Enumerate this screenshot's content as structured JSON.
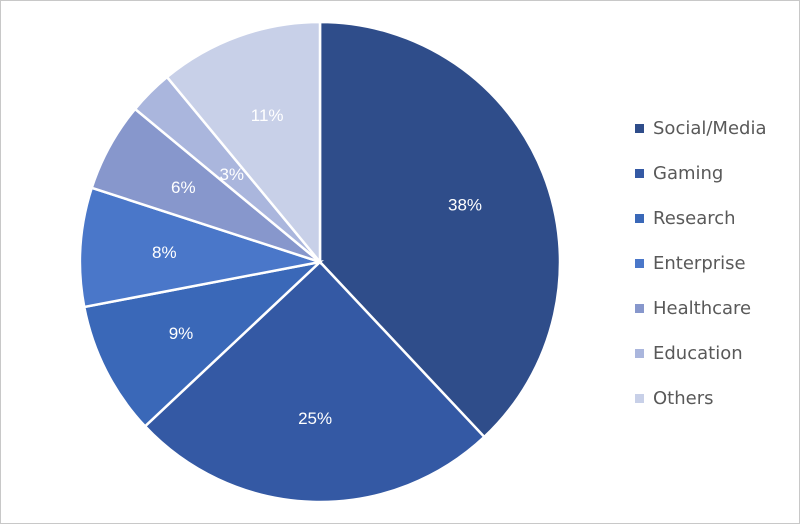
{
  "chart_data": {
    "type": "pie",
    "categories": [
      "Social/Media",
      "Gaming",
      "Research",
      "Enterprise",
      "Healthcare",
      "Education",
      "Others"
    ],
    "values": [
      38,
      25,
      9,
      8,
      6,
      3,
      11
    ],
    "data_labels": [
      "38%",
      "25%",
      "9%",
      "8%",
      "6%",
      "3%",
      "11%"
    ],
    "colors": [
      "#2f4d8a",
      "#3459a4",
      "#3a68b8",
      "#4a77c9",
      "#8797cc",
      "#aab6dd",
      "#c8d0e8"
    ],
    "legend_placement": "right",
    "start_angle": "12 o'clock, clockwise"
  },
  "legend": {
    "items": [
      {
        "label": "Social/Media",
        "color": "#2f4d8a"
      },
      {
        "label": "Gaming",
        "color": "#3459a4"
      },
      {
        "label": "Research",
        "color": "#3a68b8"
      },
      {
        "label": "Enterprise",
        "color": "#4a77c9"
      },
      {
        "label": "Healthcare",
        "color": "#8797cc"
      },
      {
        "label": "Education",
        "color": "#aab6dd"
      },
      {
        "label": "Others",
        "color": "#c8d0e8"
      }
    ]
  }
}
